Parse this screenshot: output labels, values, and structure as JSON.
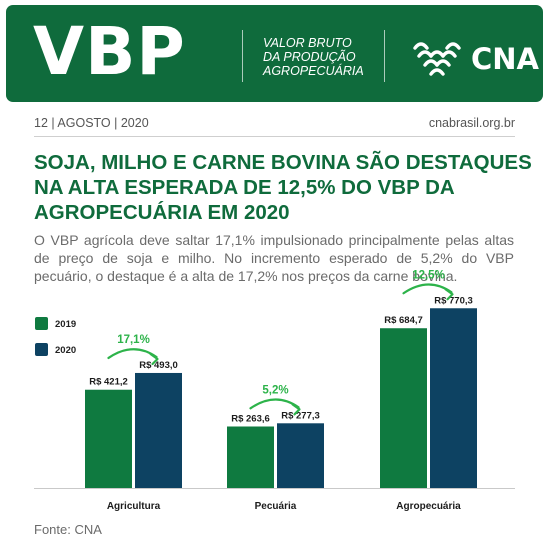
{
  "banner": {
    "brand": "VBP",
    "tagline": [
      "VALOR BRUTO",
      "DA PRODUÇÃO",
      "AGROPECUÁRIA"
    ],
    "logo_name": "CNA",
    "logo_icon": "cna-logo-icon",
    "color": "#0f6b3c"
  },
  "meta": {
    "date": "12 | AGOSTO | 2020",
    "site": "cnabrasil.org.br"
  },
  "headline": [
    "SOJA, MILHO E CARNE BOVINA SÃO DESTAQUES",
    "NA ALTA ESPERADA DE 12,5% DO VBP DA",
    "AGROPECUÁRIA EM 2020"
  ],
  "lede": "O VBP agrícola deve saltar 17,1% impulsionado principalmente pelas altas de preço de soja e milho. No incremento esperado de 5,2% do VBP pecuário, o destaque é a alta de 17,2% nos preços da carne bovina.",
  "chart_data": {
    "type": "bar",
    "categories": [
      "Agricultura",
      "Pecuária",
      "Agropecuária"
    ],
    "series": [
      {
        "name": "2019",
        "color": "#0f7a40",
        "values": [
          421.2,
          263.6,
          684.7
        ],
        "labels": [
          "R$ 421,2",
          "R$ 263,6",
          "R$ 684,7"
        ]
      },
      {
        "name": "2020",
        "color": "#0d4262",
        "values": [
          493.0,
          277.3,
          770.3
        ],
        "labels": [
          "R$ 493,0",
          "R$ 277,3",
          "R$ 770,3"
        ]
      }
    ],
    "growth_labels": [
      "17,1%",
      "5,2%",
      "12,5%"
    ],
    "growth_color": "#2db34a",
    "legend_position": "top-left",
    "ylim": [
      0,
      900
    ],
    "grid": false
  },
  "source": "Fonte: CNA"
}
